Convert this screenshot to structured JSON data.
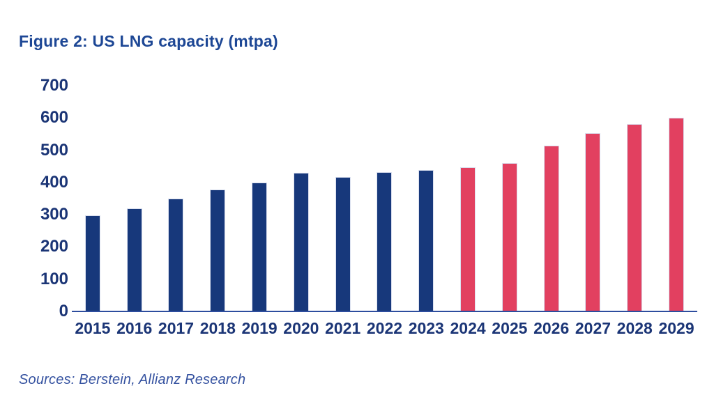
{
  "figure": {
    "title": "Figure 2: US LNG capacity (mtpa)",
    "source": "Sources: Berstein, Allianz Research"
  },
  "chart_data": {
    "type": "bar",
    "title": "Figure 2: US LNG capacity (mtpa)",
    "xlabel": "",
    "ylabel": "",
    "categories": [
      "2015",
      "2016",
      "2017",
      "2018",
      "2019",
      "2020",
      "2021",
      "2022",
      "2023",
      "2024",
      "2025",
      "2026",
      "2027",
      "2028",
      "2029"
    ],
    "series": [
      {
        "name": "US LNG capacity (mtpa)",
        "values": [
          297,
          317,
          348,
          375,
          397,
          427,
          414,
          429,
          436,
          445,
          458,
          512,
          551,
          578,
          598
        ]
      }
    ],
    "bar_colors": [
      "#17387b",
      "#17387b",
      "#17387b",
      "#17387b",
      "#17387b",
      "#17387b",
      "#17387b",
      "#17387b",
      "#17387b",
      "#e24060",
      "#e24060",
      "#e24060",
      "#e24060",
      "#e24060",
      "#e24060"
    ],
    "color_legend": {
      "historical_2015_2023": "#17387b",
      "forecast_2024_2029": "#e24060"
    },
    "ylim": [
      0,
      700
    ],
    "yticks": [
      0,
      100,
      200,
      300,
      400,
      500,
      600,
      700
    ],
    "grid": false,
    "legend_position": "none",
    "styles": {
      "title_color": "#1d4795",
      "tick_label_color": "#1b3576",
      "axis_line_color": "#2d4d9e",
      "source_color": "#3552a0",
      "background": "#ffffff"
    }
  }
}
